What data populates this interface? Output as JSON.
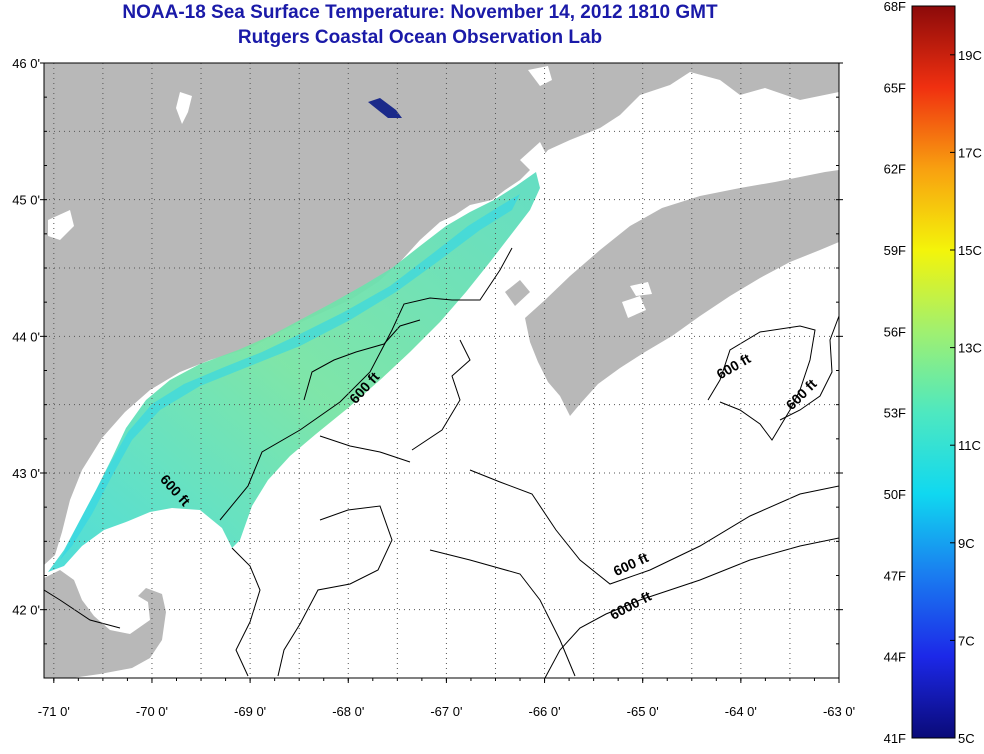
{
  "titles": {
    "line1": "NOAA-18 Sea Surface Temperature:  November 14, 2012 1810 GMT",
    "line2": "Rutgers Coastal Ocean Observation Lab"
  },
  "map": {
    "lon_range": [
      -71.1,
      -63.0
    ],
    "lat_range": [
      41.5,
      46.0
    ],
    "x_ticks": [
      {
        "value": -71,
        "label": "-71 0'"
      },
      {
        "value": -70,
        "label": "-70 0'"
      },
      {
        "value": -69,
        "label": "-69 0'"
      },
      {
        "value": -68,
        "label": "-68 0'"
      },
      {
        "value": -67,
        "label": "-67 0'"
      },
      {
        "value": -66,
        "label": "-66 0'"
      },
      {
        "value": -65,
        "label": "-65 0'"
      },
      {
        "value": -64,
        "label": "-64 0'"
      },
      {
        "value": -63,
        "label": "-63 0'"
      }
    ],
    "y_ticks": [
      {
        "value": 46,
        "label": "46 0'"
      },
      {
        "value": 45,
        "label": "45 0'"
      },
      {
        "value": 44,
        "label": "44 0'"
      },
      {
        "value": 43,
        "label": "43 0'"
      },
      {
        "value": 42,
        "label": "42 0'"
      }
    ],
    "contour_labels": [
      {
        "text": "600 ft",
        "lon": -67.8,
        "lat": 43.6,
        "angle": -48
      },
      {
        "text": "600 ft",
        "lon": -69.8,
        "lat": 42.85,
        "angle": 48
      },
      {
        "text": "600 ft",
        "lon": -64.05,
        "lat": 43.75,
        "angle": -30
      },
      {
        "text": "600 ft",
        "lon": -63.35,
        "lat": 43.55,
        "angle": -45
      },
      {
        "text": "600 ft",
        "lon": -65.1,
        "lat": 42.3,
        "angle": -25
      },
      {
        "text": "6000 ft",
        "lon": -65.1,
        "lat": 42.0,
        "angle": -28
      }
    ],
    "grid": true,
    "colors": {
      "land": "#b8b8b8",
      "ocean_nodata": "#ffffff",
      "contour": "#000000",
      "sst_main": "#6ee0a8",
      "sst_cool": "#38d8e8",
      "sst_warm": "#9ee68c"
    }
  },
  "colorbar": {
    "min_f": "41F",
    "max_f": "68F",
    "f_labels": [
      "68F",
      "65F",
      "62F",
      "59F",
      "56F",
      "53F",
      "50F",
      "47F",
      "44F",
      "41F"
    ],
    "c_labels": [
      "19C",
      "17C",
      "15C",
      "13C",
      "11C",
      "9C",
      "7C",
      "5C"
    ],
    "stops": [
      "#0a0a78",
      "#1c28e8",
      "#1a7cf0",
      "#10d8f0",
      "#4ee8c0",
      "#a0f070",
      "#f4f40a",
      "#f8a010",
      "#f03010",
      "#8c0a0a"
    ]
  }
}
